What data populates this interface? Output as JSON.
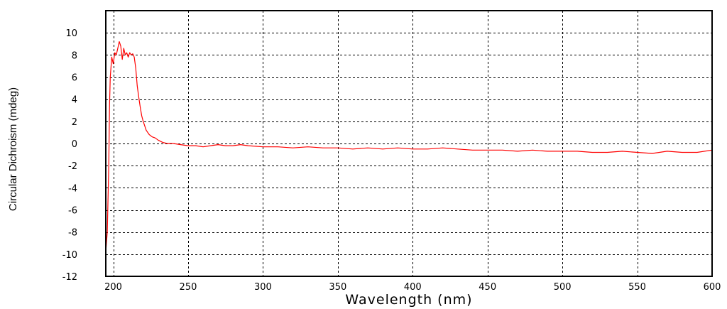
{
  "chart_data": {
    "type": "line",
    "title": "",
    "xlabel": "Wavelength (nm)",
    "ylabel": "Circular Dichroism (mdeg)",
    "xlim": [
      195,
      600
    ],
    "ylim": [
      -12,
      12
    ],
    "x_ticks": [
      200,
      250,
      300,
      350,
      400,
      450,
      500,
      550,
      600
    ],
    "y_ticks": [
      -12,
      -10,
      -8,
      -6,
      -4,
      -2,
      0,
      2,
      4,
      6,
      8,
      10
    ],
    "x_tick_labels": [
      "200",
      "250",
      "300",
      "350",
      "400",
      "450",
      "500",
      "550",
      "600"
    ],
    "y_tick_labels": [
      "-12",
      "-10",
      "-8",
      "-6",
      "-4",
      "-2",
      "0",
      "2",
      "4",
      "6",
      "8",
      "10"
    ],
    "grid": true,
    "legend": "none",
    "line_color": "#ff0000",
    "series": [
      {
        "x": [
          195,
          196,
          197,
          197.5,
          198,
          199,
          200,
          201,
          202,
          203,
          204,
          205,
          206,
          207,
          208,
          209,
          210,
          211,
          212,
          213,
          214,
          215,
          216,
          217,
          218,
          219,
          220,
          222,
          224,
          226,
          228,
          230,
          233,
          236,
          240,
          245,
          250,
          255,
          260,
          265,
          270,
          275,
          280,
          285,
          290,
          300,
          310,
          320,
          330,
          340,
          350,
          360,
          370,
          380,
          390,
          400,
          410,
          420,
          430,
          440,
          450,
          460,
          470,
          480,
          490,
          500,
          510,
          520,
          530,
          540,
          550,
          560,
          570,
          580,
          590,
          600
        ],
        "values": [
          -9.8,
          -8.0,
          -2.0,
          3.5,
          6.0,
          7.8,
          7.2,
          8.2,
          8.0,
          8.6,
          9.2,
          8.8,
          7.6,
          8.6,
          8.0,
          8.2,
          7.8,
          8.2,
          8.0,
          8.1,
          7.8,
          6.8,
          5.2,
          4.2,
          3.3,
          2.5,
          2.0,
          1.2,
          0.8,
          0.6,
          0.5,
          0.3,
          0.1,
          0.0,
          0.0,
          -0.1,
          -0.2,
          -0.2,
          -0.3,
          -0.2,
          -0.1,
          -0.2,
          -0.2,
          -0.1,
          -0.2,
          -0.3,
          -0.3,
          -0.4,
          -0.3,
          -0.4,
          -0.4,
          -0.5,
          -0.4,
          -0.5,
          -0.4,
          -0.5,
          -0.5,
          -0.4,
          -0.5,
          -0.6,
          -0.6,
          -0.6,
          -0.7,
          -0.6,
          -0.7,
          -0.7,
          -0.7,
          -0.8,
          -0.8,
          -0.7,
          -0.8,
          -0.9,
          -0.7,
          -0.8,
          -0.8,
          -0.6
        ]
      }
    ]
  }
}
